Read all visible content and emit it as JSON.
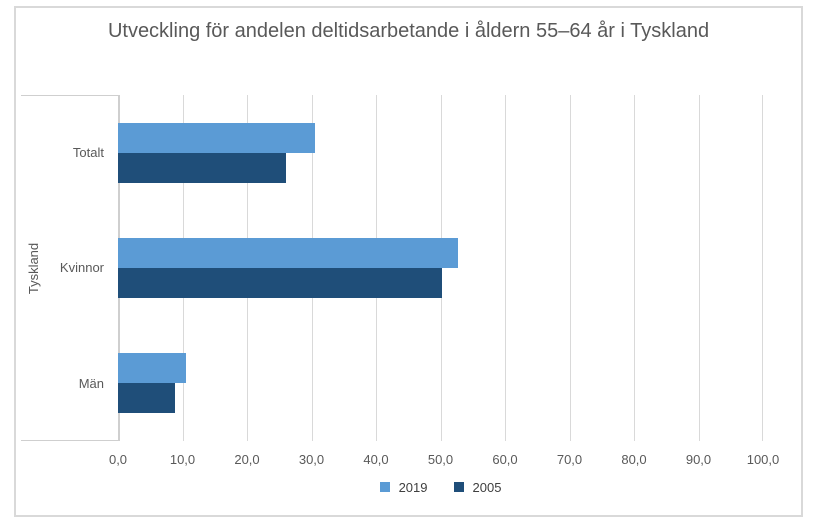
{
  "chart_data": {
    "type": "bar",
    "orientation": "horizontal",
    "title": "Utveckling för andelen deltidsarbetande i åldern 55–64 år i Tyskland",
    "group_label": "Tyskland",
    "categories": [
      "Totalt",
      "Kvinnor",
      "Män"
    ],
    "series": [
      {
        "name": "2019",
        "color": "#5B9BD5",
        "values": [
          30.6,
          52.7,
          10.5
        ]
      },
      {
        "name": "2005",
        "color": "#1F4E79",
        "values": [
          26.0,
          50.3,
          8.9
        ]
      }
    ],
    "xlim": [
      0,
      100
    ],
    "x_ticks": [
      {
        "value": 0,
        "label": "0,0"
      },
      {
        "value": 10,
        "label": "10,0"
      },
      {
        "value": 20,
        "label": "20,0"
      },
      {
        "value": 30,
        "label": "30,0"
      },
      {
        "value": 40,
        "label": "40,0"
      },
      {
        "value": 50,
        "label": "50,0"
      },
      {
        "value": 60,
        "label": "60,0"
      },
      {
        "value": 70,
        "label": "70,0"
      },
      {
        "value": 80,
        "label": "80,0"
      },
      {
        "value": 90,
        "label": "90,0"
      },
      {
        "value": 100,
        "label": "100,0"
      }
    ],
    "grid": true,
    "legend_position": "bottom",
    "colors": {
      "title_text": "#595959",
      "axis_text": "#595959",
      "legend_text": "#404040",
      "gridline": "#D9D9D9",
      "frame_border": "#D9D9D9"
    }
  }
}
